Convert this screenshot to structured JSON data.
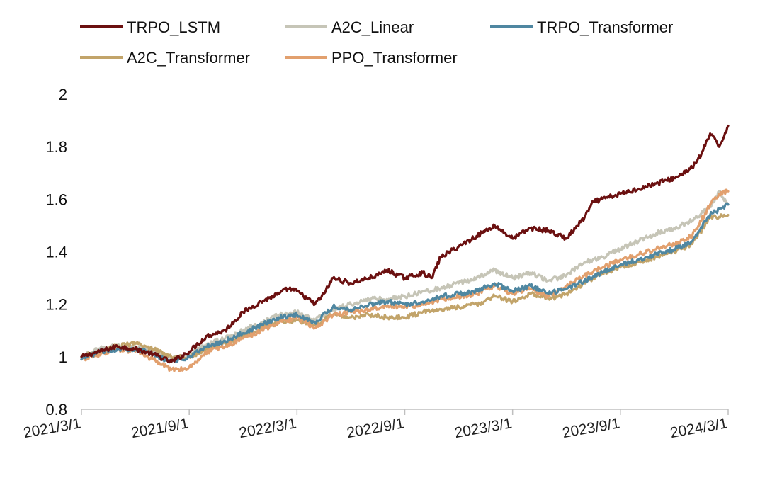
{
  "chart_data": {
    "type": "line",
    "title": "",
    "xlabel": "",
    "ylabel": "",
    "ylim": [
      0.8,
      2.0
    ],
    "yticks": [
      "0.8",
      "1",
      "1.2",
      "1.4",
      "1.6",
      "1.8",
      "2"
    ],
    "ytick_values": [
      0.8,
      1.0,
      1.2,
      1.4,
      1.6,
      1.8,
      2.0
    ],
    "xticks": [
      "2021/3/1",
      "2021/9/1",
      "2022/3/1",
      "2022/9/1",
      "2023/3/1",
      "2023/9/1",
      "2024/3/1"
    ],
    "x_range_months": [
      0,
      36
    ],
    "x_tick_months": [
      0,
      6,
      12,
      18,
      24,
      30,
      36
    ],
    "legend_position": "top",
    "series": [
      {
        "name": "TRPO_LSTM",
        "color": "#6b1010",
        "x": [
          0,
          1,
          2,
          3,
          4,
          5,
          6,
          6.5,
          7,
          8,
          9,
          9.5,
          10,
          11,
          11.5,
          12,
          13,
          13.5,
          14,
          15,
          16,
          16.5,
          17,
          18,
          19,
          19.5,
          20,
          21,
          22,
          23,
          24,
          25,
          26,
          27,
          28,
          28.5,
          29,
          30,
          31,
          32,
          33,
          34,
          34.5,
          35,
          35.5,
          36
        ],
        "values": [
          1.0,
          1.02,
          1.04,
          1.03,
          1.01,
          0.98,
          1.02,
          1.05,
          1.08,
          1.1,
          1.17,
          1.19,
          1.21,
          1.24,
          1.26,
          1.25,
          1.2,
          1.24,
          1.3,
          1.28,
          1.3,
          1.31,
          1.33,
          1.3,
          1.32,
          1.3,
          1.38,
          1.42,
          1.46,
          1.5,
          1.45,
          1.49,
          1.48,
          1.45,
          1.53,
          1.59,
          1.6,
          1.62,
          1.64,
          1.66,
          1.68,
          1.72,
          1.77,
          1.85,
          1.8,
          1.88
        ]
      },
      {
        "name": "A2C_Linear",
        "color": "#c6c5b7",
        "x": [
          0,
          1,
          2,
          3,
          4,
          5,
          6,
          7,
          8,
          9,
          10,
          11,
          12,
          13,
          14,
          15,
          16,
          17,
          18,
          19,
          20,
          21,
          22,
          23,
          24,
          25,
          26,
          27,
          28,
          29,
          30,
          31,
          32,
          33,
          34,
          35,
          35.5,
          36
        ],
        "values": [
          1.0,
          1.03,
          1.04,
          1.04,
          1.02,
          0.99,
          1.01,
          1.05,
          1.07,
          1.1,
          1.13,
          1.16,
          1.17,
          1.14,
          1.18,
          1.2,
          1.22,
          1.22,
          1.23,
          1.25,
          1.26,
          1.28,
          1.3,
          1.33,
          1.3,
          1.32,
          1.29,
          1.31,
          1.36,
          1.38,
          1.41,
          1.44,
          1.47,
          1.49,
          1.52,
          1.57,
          1.63,
          1.58
        ]
      },
      {
        "name": "TRPO_Transformer",
        "color": "#4f87a1",
        "x": [
          0,
          1,
          2,
          3,
          4,
          5,
          6,
          7,
          8,
          9,
          10,
          11,
          12,
          13,
          14,
          15,
          16,
          17,
          18,
          19,
          20,
          21,
          22,
          23,
          24,
          25,
          26,
          27,
          28,
          29,
          30,
          31,
          32,
          33,
          34,
          35,
          36
        ],
        "values": [
          0.99,
          1.02,
          1.03,
          1.03,
          1.01,
          0.98,
          1.0,
          1.04,
          1.06,
          1.09,
          1.12,
          1.15,
          1.16,
          1.13,
          1.19,
          1.18,
          1.2,
          1.21,
          1.2,
          1.21,
          1.23,
          1.24,
          1.25,
          1.28,
          1.25,
          1.27,
          1.24,
          1.26,
          1.29,
          1.32,
          1.35,
          1.37,
          1.39,
          1.41,
          1.44,
          1.54,
          1.58
        ]
      },
      {
        "name": "A2C_Transformer",
        "color": "#c2a46a",
        "x": [
          0,
          1,
          2,
          3,
          4,
          5,
          6,
          7,
          8,
          9,
          10,
          11,
          12,
          13,
          14,
          15,
          16,
          17,
          18,
          19,
          20,
          21,
          22,
          23,
          24,
          25,
          26,
          27,
          28,
          29,
          30,
          31,
          32,
          33,
          34,
          35,
          36
        ],
        "values": [
          1.0,
          1.02,
          1.04,
          1.05,
          1.03,
          1.0,
          1.0,
          1.03,
          1.05,
          1.08,
          1.11,
          1.13,
          1.14,
          1.12,
          1.16,
          1.15,
          1.16,
          1.15,
          1.15,
          1.17,
          1.18,
          1.19,
          1.2,
          1.23,
          1.21,
          1.24,
          1.22,
          1.24,
          1.28,
          1.32,
          1.34,
          1.36,
          1.38,
          1.4,
          1.43,
          1.53,
          1.54
        ]
      },
      {
        "name": "PPO_Transformer",
        "color": "#e2a06e",
        "x": [
          0,
          1,
          2,
          3,
          4,
          5,
          6,
          7,
          8,
          9,
          10,
          11,
          12,
          13,
          14,
          15,
          16,
          17,
          18,
          19,
          20,
          21,
          22,
          23,
          24,
          25,
          26,
          27,
          28,
          29,
          30,
          31,
          32,
          33,
          34,
          35,
          35.5,
          36
        ],
        "values": [
          0.99,
          1.01,
          1.03,
          1.02,
          0.99,
          0.95,
          0.96,
          1.02,
          1.04,
          1.07,
          1.1,
          1.13,
          1.15,
          1.11,
          1.16,
          1.17,
          1.18,
          1.19,
          1.19,
          1.2,
          1.22,
          1.23,
          1.24,
          1.27,
          1.24,
          1.26,
          1.23,
          1.27,
          1.31,
          1.34,
          1.37,
          1.39,
          1.41,
          1.43,
          1.46,
          1.58,
          1.62,
          1.63
        ]
      }
    ]
  }
}
